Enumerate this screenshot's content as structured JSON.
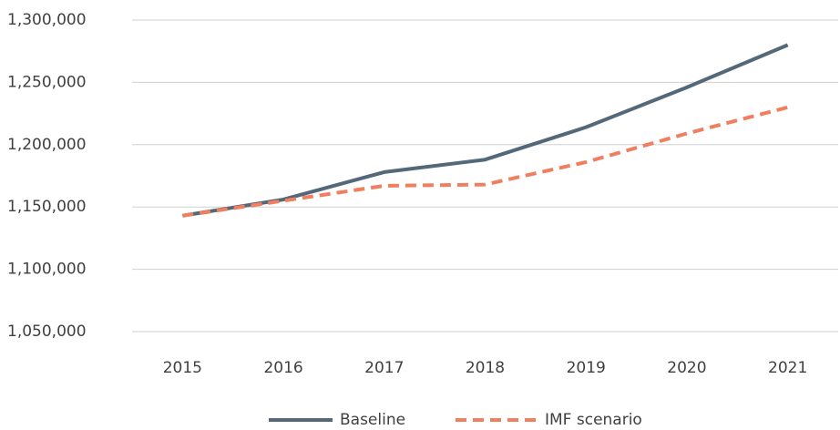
{
  "chart_data": {
    "type": "line",
    "categories": [
      "2015",
      "2016",
      "2017",
      "2018",
      "2019",
      "2020",
      "2021"
    ],
    "series": [
      {
        "name": "Baseline",
        "color": "#536878",
        "dash": false,
        "values": [
          1143000,
          1156000,
          1178000,
          1188000,
          1214000,
          1246000,
          1280000
        ]
      },
      {
        "name": "IMF scenario",
        "color": "#f07f60",
        "dash": true,
        "values": [
          1143000,
          1155000,
          1167000,
          1168000,
          1186000,
          1209000,
          1230000
        ]
      }
    ],
    "ylim": [
      1050000,
      1300000
    ],
    "yticks": [
      {
        "value": 1050000,
        "label": "1,050,000"
      },
      {
        "value": 1100000,
        "label": "1,100,000"
      },
      {
        "value": 1150000,
        "label": "1,150,000"
      },
      {
        "value": 1200000,
        "label": "1,200,000"
      },
      {
        "value": 1250000,
        "label": "1,250,000"
      },
      {
        "value": 1300000,
        "label": "1,300,000"
      }
    ],
    "grid": true,
    "legend": "bottom"
  }
}
